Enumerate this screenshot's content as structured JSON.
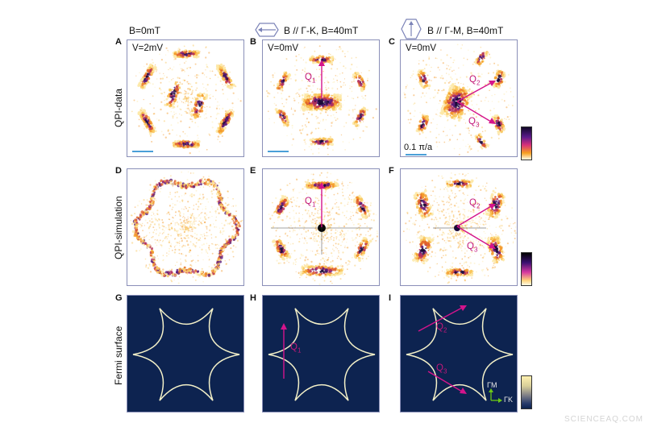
{
  "columns": [
    {
      "header": "B=0mT"
    },
    {
      "header": "B // Γ-K, B=40mT"
    },
    {
      "header": "B // Γ-M, B=40mT"
    }
  ],
  "rows": [
    "QPI-data",
    "QPI-simulation",
    "Fermi  surface"
  ],
  "panels": {
    "A": {
      "letter": "A",
      "label": "V=2mV"
    },
    "B": {
      "letter": "B",
      "label": "V=0mV",
      "q1": "Q",
      "q1_sub": "1"
    },
    "C": {
      "letter": "C",
      "label": "V=0mV",
      "q2": "Q",
      "q2_sub": "2",
      "q3": "Q",
      "q3_sub": "3",
      "scale": "0.1 π/a"
    },
    "D": {
      "letter": "D"
    },
    "E": {
      "letter": "E",
      "q1": "Q",
      "q1_sub": "1"
    },
    "F": {
      "letter": "F",
      "q2": "Q",
      "q2_sub": "2",
      "q3": "Q",
      "q3_sub": "3"
    },
    "G": {
      "letter": "G"
    },
    "H": {
      "letter": "H",
      "q1": "Q",
      "q1_sub": "1"
    },
    "I": {
      "letter": "I",
      "q2": "Q",
      "q2_sub": "2",
      "q3": "Q",
      "q3_sub": "3",
      "axis_gm": "ΓM",
      "axis_gk": "ΓK"
    }
  },
  "watermark": "SCIENCEAQ.COM",
  "colors": {
    "frame": "#8a8fb8",
    "arrow": "#d4148c",
    "fermi_bg": "#0d2350",
    "fermi_line": "#f3f0c8",
    "scale_bar": "#4a9fd8",
    "axis_arrow": "#6cc817"
  }
}
